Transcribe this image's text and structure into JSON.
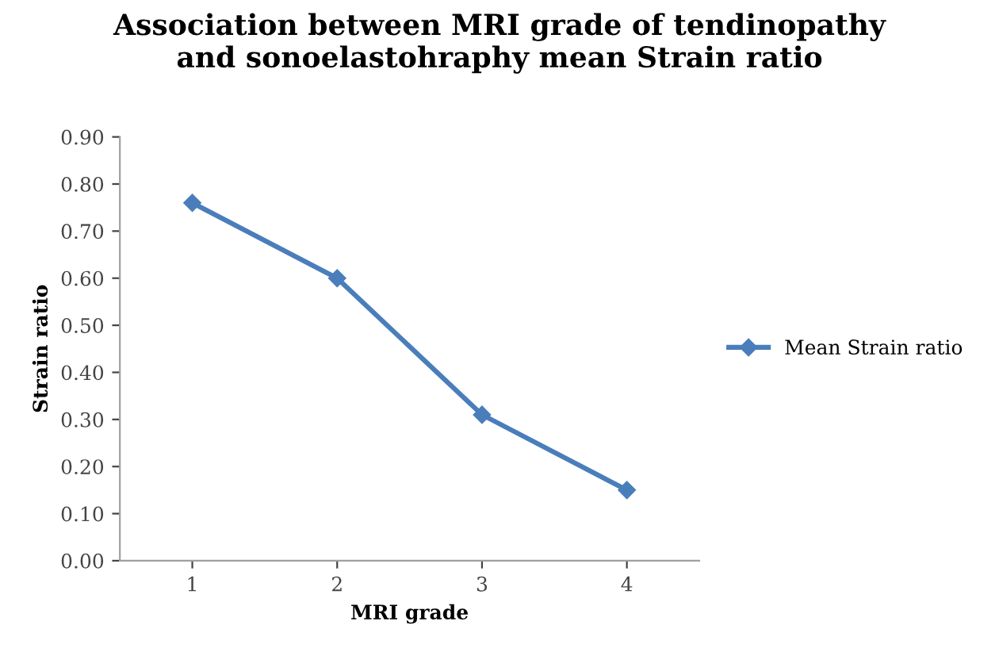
{
  "chart_data": {
    "type": "line",
    "title": "Association between MRI grade of tendinopathy\nand sonoelastohraphy mean Strain ratio",
    "xlabel": "MRI grade",
    "ylabel": "Strain ratio",
    "categories": [
      "1",
      "2",
      "3",
      "4"
    ],
    "series": [
      {
        "name": "Mean Strain ratio",
        "color": "#4a7ebb",
        "values": [
          0.76,
          0.6,
          0.31,
          0.15
        ]
      }
    ],
    "ylim": [
      0,
      0.9
    ],
    "yticks": [
      {
        "value": 0,
        "label": "0.00"
      },
      {
        "value": 0.1,
        "label": "0.10"
      },
      {
        "value": 0.2,
        "label": "0.20"
      },
      {
        "value": 0.3,
        "label": "0.30"
      },
      {
        "value": 0.4,
        "label": "0.40"
      },
      {
        "value": 0.5,
        "label": "0.50"
      },
      {
        "value": 0.6,
        "label": "0.60"
      },
      {
        "value": 0.7,
        "label": "0.70"
      },
      {
        "value": 0.8,
        "label": "0.80"
      },
      {
        "value": 0.9,
        "label": "0.90"
      }
    ],
    "grid": false,
    "legend": "right",
    "marker": "diamond",
    "line_style": "solid"
  }
}
